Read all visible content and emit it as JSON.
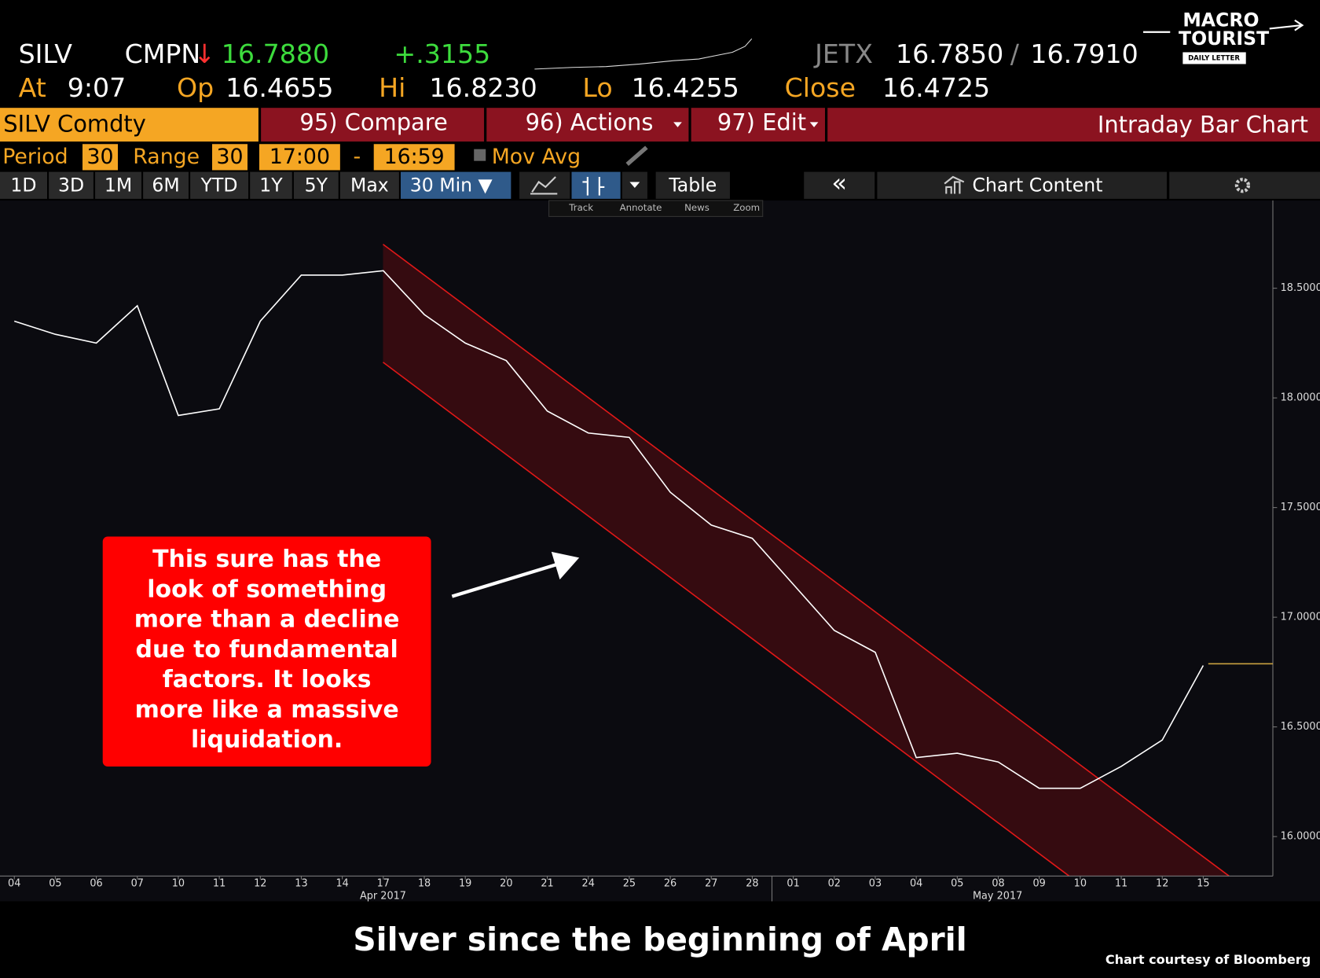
{
  "header": {
    "ticker": "SILV",
    "source": "CMPN",
    "direction": "↓",
    "last": "16.7880",
    "change": "+.3155",
    "quote_source": "JETX",
    "bid": "16.7850",
    "separator": "/",
    "ask": "16.7910",
    "at_label": "At",
    "at_time": "9:07",
    "open_label": "Op",
    "open": "16.4655",
    "high_label": "Hi",
    "high": "16.8230",
    "low_label": "Lo",
    "low": "16.4255",
    "close_label": "Close",
    "close": "16.4725"
  },
  "logo": {
    "line1": "MACRO",
    "line2": "TOURIST",
    "line3": "DAILY LETTER"
  },
  "toolbar": {
    "security": "SILV Comdty",
    "compare": "95) Compare",
    "actions": "96) Actions",
    "edit": "97) Edit",
    "chart_title": "Intraday Bar Chart"
  },
  "settings": {
    "period_label": "Period",
    "period": "30",
    "range_label": "Range",
    "range": "30",
    "start": "17:00",
    "dash": "-",
    "end": "16:59",
    "mov_avg": "Mov Avg"
  },
  "ranges": [
    "1D",
    "3D",
    "1M",
    "6M",
    "YTD",
    "1Y",
    "5Y",
    "Max"
  ],
  "interval": "30 Min ▼",
  "table": "Table",
  "collapse": "«",
  "chart_content": "Chart Content",
  "tools": [
    "Track",
    "Annotate",
    "News",
    "Zoom"
  ],
  "annotation": [
    "This sure has the",
    "look of something",
    "more than a decline",
    "due to fundamental",
    "factors.  It looks",
    "more like a massive",
    "liquidation."
  ],
  "caption": "Silver since the beginning of April",
  "credit": "Chart courtesy of Bloomberg",
  "chart_data": {
    "type": "line",
    "categories": [
      "04",
      "05",
      "06",
      "07",
      "10",
      "11",
      "12",
      "13",
      "14",
      "17",
      "18",
      "19",
      "20",
      "21",
      "24",
      "25",
      "26",
      "27",
      "28",
      "01",
      "02",
      "03",
      "04",
      "05",
      "08",
      "09",
      "10",
      "11",
      "12",
      "15"
    ],
    "x_group_labels": [
      "Apr 2017",
      "May 2017"
    ],
    "series": [
      {
        "name": "SILV Comdty",
        "color": "#ffffff",
        "values": [
          18.35,
          18.29,
          18.25,
          18.42,
          17.92,
          17.95,
          18.35,
          18.56,
          18.56,
          18.58,
          18.38,
          18.25,
          18.17,
          17.94,
          17.84,
          17.82,
          17.57,
          17.42,
          17.36,
          17.15,
          16.94,
          16.84,
          16.36,
          16.38,
          16.34,
          16.22,
          16.22,
          16.32,
          16.44,
          16.78
        ]
      }
    ],
    "last_price": 16.788,
    "last_price_color": "#c8a040",
    "ylim": [
      15.82,
      18.9
    ],
    "yticks": [
      {
        "value": 16,
        "label": "16.0000"
      },
      {
        "value": 16.5,
        "label": "16.5000"
      },
      {
        "value": 17,
        "label": "17.0000"
      },
      {
        "value": 17.5,
        "label": "17.5000"
      },
      {
        "value": 18,
        "label": "18.0000"
      },
      {
        "value": 18.5,
        "label": "18.5000"
      }
    ],
    "grid": false
  }
}
